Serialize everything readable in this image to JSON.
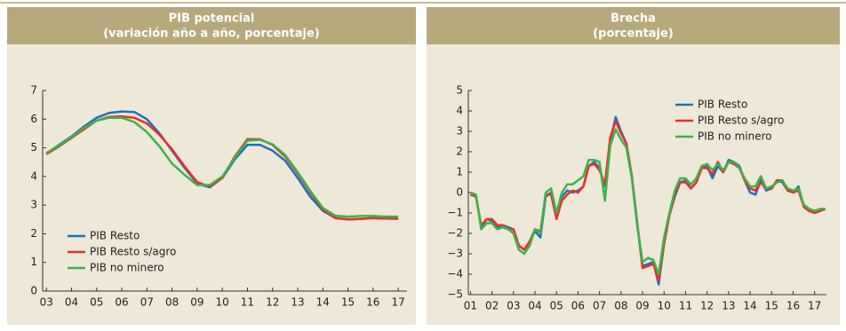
{
  "chart_data": [
    {
      "type": "line",
      "title": "PIB potencial",
      "subtitle": "(variación año a año, porcentaje)",
      "x": [
        2003,
        2003.5,
        2004,
        2004.5,
        2005,
        2005.5,
        2006,
        2006.5,
        2007,
        2007.5,
        2008,
        2008.5,
        2009,
        2009.5,
        2010,
        2010.5,
        2011,
        2011.5,
        2012,
        2012.5,
        2013,
        2013.5,
        2014,
        2014.5,
        2015,
        2015.5,
        2016,
        2016.5,
        2017
      ],
      "xlim": [
        2002.85,
        2017.35
      ],
      "xticks": [
        {
          "value": 2003,
          "label": "03"
        },
        {
          "value": 2004,
          "label": "04"
        },
        {
          "value": 2005,
          "label": "05"
        },
        {
          "value": 2006,
          "label": "06"
        },
        {
          "value": 2007,
          "label": "07"
        },
        {
          "value": 2008,
          "label": "08"
        },
        {
          "value": 2009,
          "label": "09"
        },
        {
          "value": 2010,
          "label": "10"
        },
        {
          "value": 2011,
          "label": "11"
        },
        {
          "value": 2012,
          "label": "12"
        },
        {
          "value": 2013,
          "label": "13"
        },
        {
          "value": 2014,
          "label": "14"
        },
        {
          "value": 2015,
          "label": "15"
        },
        {
          "value": 2016,
          "label": "16"
        },
        {
          "value": 2017,
          "label": "17"
        }
      ],
      "ylim": [
        0,
        7
      ],
      "yticks": [
        0,
        1,
        2,
        3,
        4,
        5,
        6,
        7
      ],
      "legend": "lower left",
      "series": [
        {
          "name": "PIB Resto",
          "color": "#1f6fbf",
          "values": [
            4.8,
            5.1,
            5.4,
            5.75,
            6.05,
            6.22,
            6.27,
            6.25,
            6.0,
            5.5,
            4.9,
            4.3,
            3.75,
            3.62,
            3.95,
            4.6,
            5.1,
            5.1,
            4.9,
            4.55,
            3.95,
            3.3,
            2.8,
            2.55,
            2.5,
            2.52,
            2.55,
            2.53,
            2.53
          ]
        },
        {
          "name": "PIB Resto s/agro",
          "color": "#e8312a",
          "values": [
            4.78,
            5.05,
            5.35,
            5.65,
            5.95,
            6.08,
            6.1,
            6.05,
            5.85,
            5.45,
            4.95,
            4.35,
            3.8,
            3.65,
            3.95,
            4.7,
            5.3,
            5.3,
            5.1,
            4.7,
            4.1,
            3.45,
            2.85,
            2.55,
            2.5,
            2.52,
            2.55,
            2.53,
            2.52
          ]
        },
        {
          "name": "PIB no minero",
          "color": "#3cb44b",
          "values": [
            4.82,
            5.08,
            5.38,
            5.7,
            5.95,
            6.05,
            6.05,
            5.9,
            5.55,
            5.05,
            4.45,
            4.05,
            3.7,
            3.7,
            4.0,
            4.65,
            5.25,
            5.28,
            5.12,
            4.75,
            4.15,
            3.5,
            2.9,
            2.63,
            2.6,
            2.62,
            2.62,
            2.6,
            2.6
          ]
        }
      ]
    },
    {
      "type": "line",
      "title": "Brecha",
      "subtitle": "(porcentaje)",
      "x": [
        2001,
        2001.25,
        2001.5,
        2001.75,
        2002,
        2002.25,
        2002.5,
        2002.75,
        2003,
        2003.25,
        2003.5,
        2003.75,
        2004,
        2004.25,
        2004.5,
        2004.75,
        2005,
        2005.25,
        2005.5,
        2005.75,
        2006,
        2006.25,
        2006.5,
        2006.75,
        2007,
        2007.25,
        2007.5,
        2007.75,
        2008,
        2008.25,
        2008.5,
        2008.75,
        2009,
        2009.25,
        2009.5,
        2009.75,
        2010,
        2010.25,
        2010.5,
        2010.75,
        2011,
        2011.25,
        2011.5,
        2011.75,
        2012,
        2012.25,
        2012.5,
        2012.75,
        2013,
        2013.25,
        2013.5,
        2013.75,
        2014,
        2014.25,
        2014.5,
        2014.75,
        2015,
        2015.25,
        2015.5,
        2015.75,
        2016,
        2016.25,
        2016.5,
        2016.75,
        2017,
        2017.25,
        2017.5
      ],
      "xlim": [
        2000.9,
        2017.55
      ],
      "xticks": [
        {
          "value": 2001,
          "label": "01"
        },
        {
          "value": 2002,
          "label": "02"
        },
        {
          "value": 2003,
          "label": "03"
        },
        {
          "value": 2004,
          "label": "04"
        },
        {
          "value": 2005,
          "label": "05"
        },
        {
          "value": 2006,
          "label": "06"
        },
        {
          "value": 2007,
          "label": "07"
        },
        {
          "value": 2008,
          "label": "08"
        },
        {
          "value": 2009,
          "label": "09"
        },
        {
          "value": 2010,
          "label": "10"
        },
        {
          "value": 2011,
          "label": "11"
        },
        {
          "value": 2012,
          "label": "12"
        },
        {
          "value": 2013,
          "label": "13"
        },
        {
          "value": 2014,
          "label": "14"
        },
        {
          "value": 2015,
          "label": "15"
        },
        {
          "value": 2016,
          "label": "16"
        },
        {
          "value": 2017,
          "label": "17"
        }
      ],
      "ylim": [
        -5,
        5
      ],
      "yticks": [
        {
          "value": -5,
          "label": "−5"
        },
        {
          "value": -4,
          "label": "−4"
        },
        {
          "value": -3,
          "label": "−3"
        },
        {
          "value": -2,
          "label": "−2"
        },
        {
          "value": -1,
          "label": "−1"
        },
        0,
        1,
        2,
        3,
        4,
        5
      ],
      "legend": "upper right",
      "series": [
        {
          "name": "PIB Resto",
          "color": "#1f6fbf",
          "values": [
            0,
            -0.1,
            -1.7,
            -1.3,
            -1.4,
            -1.7,
            -1.6,
            -1.7,
            -1.8,
            -2.6,
            -2.8,
            -2.4,
            -1.9,
            -2.2,
            -0.2,
            0.0,
            -1.2,
            -0.2,
            0.1,
            0.0,
            0.1,
            0.3,
            1.3,
            1.5,
            1.2,
            0.3,
            2.5,
            3.7,
            3.0,
            2.4,
            0.8,
            -1.5,
            -3.6,
            -3.5,
            -3.4,
            -4.5,
            -2.5,
            -1.1,
            -0.2,
            0.5,
            0.6,
            0.2,
            0.5,
            1.2,
            1.3,
            0.7,
            1.3,
            1.0,
            1.6,
            1.5,
            1.3,
            0.6,
            0.0,
            -0.1,
            0.6,
            0.1,
            0.2,
            0.6,
            0.5,
            0.1,
            0.0,
            0.3,
            -0.7,
            -0.9,
            -1.0,
            -0.9,
            -0.8
          ]
        },
        {
          "name": "PIB Resto s/agro",
          "color": "#e8312a",
          "values": [
            -0.1,
            -0.2,
            -1.6,
            -1.3,
            -1.3,
            -1.6,
            -1.6,
            -1.8,
            -1.8,
            -2.6,
            -2.8,
            -2.4,
            -1.8,
            -1.9,
            -0.1,
            -0.1,
            -1.3,
            -0.4,
            -0.1,
            0.1,
            0.0,
            0.3,
            1.3,
            1.4,
            1.1,
            0.4,
            2.7,
            3.5,
            2.9,
            2.4,
            0.8,
            -1.5,
            -3.7,
            -3.6,
            -3.5,
            -4.3,
            -2.5,
            -1.1,
            -0.1,
            0.5,
            0.5,
            0.2,
            0.5,
            1.2,
            1.2,
            0.9,
            1.5,
            1.0,
            1.5,
            1.4,
            1.2,
            0.6,
            0.2,
            0.1,
            0.5,
            0.2,
            0.2,
            0.6,
            0.6,
            0.1,
            0.0,
            0.1,
            -0.7,
            -0.9,
            -1.0,
            -0.9,
            -0.8
          ]
        },
        {
          "name": "PIB no minero",
          "color": "#3cb44b",
          "values": [
            0.0,
            -0.1,
            -1.8,
            -1.5,
            -1.5,
            -1.8,
            -1.7,
            -1.8,
            -2.0,
            -2.8,
            -3.0,
            -2.6,
            -1.8,
            -2.0,
            0.0,
            0.2,
            -1.0,
            0.0,
            0.4,
            0.4,
            0.6,
            0.8,
            1.6,
            1.6,
            1.5,
            -0.4,
            2.3,
            3.1,
            2.6,
            2.2,
            0.7,
            -1.6,
            -3.4,
            -3.2,
            -3.3,
            -4.0,
            -2.2,
            -1.0,
            0.1,
            0.7,
            0.7,
            0.4,
            0.7,
            1.3,
            1.4,
            1.1,
            1.4,
            1.1,
            1.5,
            1.5,
            1.2,
            0.7,
            0.3,
            0.3,
            0.8,
            0.2,
            0.3,
            0.5,
            0.6,
            0.2,
            0.1,
            0.2,
            -0.6,
            -0.8,
            -0.9,
            -0.8,
            -0.8
          ]
        }
      ]
    }
  ]
}
